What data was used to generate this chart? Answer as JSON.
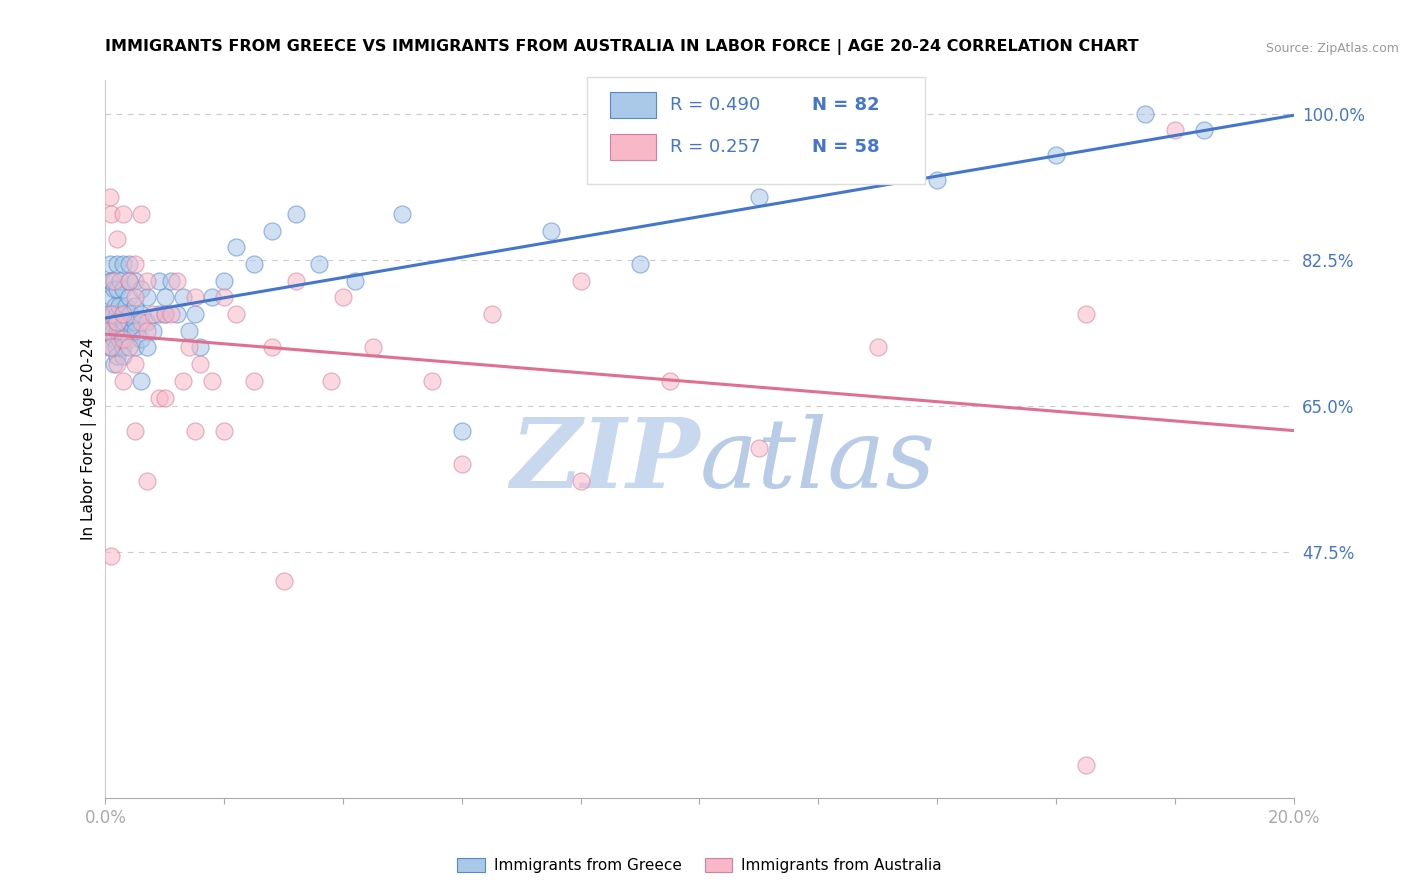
{
  "title": "IMMIGRANTS FROM GREECE VS IMMIGRANTS FROM AUSTRALIA IN LABOR FORCE | AGE 20-24 CORRELATION CHART",
  "source": "Source: ZipAtlas.com",
  "ylabel": "In Labor Force | Age 20-24",
  "xlim": [
    0.0,
    0.2
  ],
  "ylim": [
    0.18,
    1.04
  ],
  "ytick_right": [
    0.475,
    0.65,
    0.825,
    1.0
  ],
  "ytick_right_labels": [
    "47.5%",
    "65.0%",
    "82.5%",
    "100.0%"
  ],
  "xtick_positions": [
    0.0,
    0.02,
    0.04,
    0.06,
    0.08,
    0.1,
    0.12,
    0.14,
    0.16,
    0.18,
    0.2
  ],
  "legend_r_greece": "R = 0.490",
  "legend_n_greece": "N = 82",
  "legend_r_australia": "R = 0.257",
  "legend_n_australia": "N = 58",
  "color_greece_fill": "#aac8e8",
  "color_greece_edge": "#5588cc",
  "color_australia_fill": "#f8b8c8",
  "color_australia_edge": "#d080a0",
  "color_trendline_greece": "#4477cc",
  "color_trendline_australia": "#e07090",
  "watermark_zip_color": "#c8d8ee",
  "watermark_atlas_color": "#b8cce8",
  "tick_label_color": "#4477cc",
  "greece_x": [
    0.0003,
    0.0005,
    0.0006,
    0.0007,
    0.0008,
    0.0009,
    0.001,
    0.001,
    0.001,
    0.0012,
    0.0013,
    0.0014,
    0.0015,
    0.0015,
    0.0016,
    0.0017,
    0.0018,
    0.002,
    0.002,
    0.002,
    0.002,
    0.002,
    0.002,
    0.0022,
    0.0023,
    0.0025,
    0.0025,
    0.003,
    0.003,
    0.003,
    0.003,
    0.003,
    0.0032,
    0.0035,
    0.004,
    0.004,
    0.004,
    0.004,
    0.004,
    0.0042,
    0.0045,
    0.005,
    0.005,
    0.005,
    0.005,
    0.005,
    0.006,
    0.006,
    0.006,
    0.007,
    0.007,
    0.007,
    0.008,
    0.009,
    0.009,
    0.01,
    0.01,
    0.011,
    0.012,
    0.013,
    0.014,
    0.015,
    0.016,
    0.018,
    0.02,
    0.022,
    0.025,
    0.028,
    0.032,
    0.036,
    0.042,
    0.05,
    0.06,
    0.075,
    0.09,
    0.11,
    0.14,
    0.16,
    0.175,
    0.185,
    0.003,
    0.006
  ],
  "greece_y": [
    0.74,
    0.76,
    0.72,
    0.8,
    0.82,
    0.78,
    0.72,
    0.75,
    0.8,
    0.74,
    0.76,
    0.7,
    0.73,
    0.79,
    0.77,
    0.75,
    0.72,
    0.71,
    0.74,
    0.76,
    0.79,
    0.82,
    0.75,
    0.73,
    0.77,
    0.8,
    0.74,
    0.74,
    0.76,
    0.79,
    0.82,
    0.72,
    0.75,
    0.77,
    0.73,
    0.75,
    0.78,
    0.8,
    0.82,
    0.76,
    0.74,
    0.72,
    0.75,
    0.77,
    0.8,
    0.74,
    0.73,
    0.76,
    0.79,
    0.75,
    0.72,
    0.78,
    0.74,
    0.76,
    0.8,
    0.76,
    0.78,
    0.8,
    0.76,
    0.78,
    0.74,
    0.76,
    0.72,
    0.78,
    0.8,
    0.84,
    0.82,
    0.86,
    0.88,
    0.82,
    0.8,
    0.88,
    0.62,
    0.86,
    0.82,
    0.9,
    0.92,
    0.95,
    1.0,
    0.98,
    0.71,
    0.68
  ],
  "australia_x": [
    0.0005,
    0.0008,
    0.001,
    0.001,
    0.001,
    0.0015,
    0.002,
    0.002,
    0.002,
    0.003,
    0.003,
    0.003,
    0.004,
    0.004,
    0.005,
    0.005,
    0.005,
    0.006,
    0.006,
    0.007,
    0.007,
    0.008,
    0.009,
    0.01,
    0.011,
    0.012,
    0.013,
    0.014,
    0.015,
    0.016,
    0.018,
    0.02,
    0.022,
    0.025,
    0.028,
    0.032,
    0.038,
    0.045,
    0.055,
    0.065,
    0.08,
    0.095,
    0.11,
    0.13,
    0.165,
    0.18,
    0.001,
    0.003,
    0.005,
    0.007,
    0.01,
    0.015,
    0.02,
    0.03,
    0.04,
    0.06,
    0.08,
    0.165
  ],
  "australia_y": [
    0.74,
    0.9,
    0.72,
    0.76,
    0.88,
    0.8,
    0.7,
    0.85,
    0.75,
    0.73,
    0.88,
    0.76,
    0.8,
    0.72,
    0.7,
    0.78,
    0.82,
    0.75,
    0.88,
    0.8,
    0.74,
    0.76,
    0.66,
    0.76,
    0.76,
    0.8,
    0.68,
    0.72,
    0.78,
    0.7,
    0.68,
    0.78,
    0.76,
    0.68,
    0.72,
    0.8,
    0.68,
    0.72,
    0.68,
    0.76,
    0.8,
    0.68,
    0.6,
    0.72,
    0.76,
    0.98,
    0.47,
    0.68,
    0.62,
    0.56,
    0.66,
    0.62,
    0.62,
    0.44,
    0.78,
    0.58,
    0.56,
    0.22
  ]
}
